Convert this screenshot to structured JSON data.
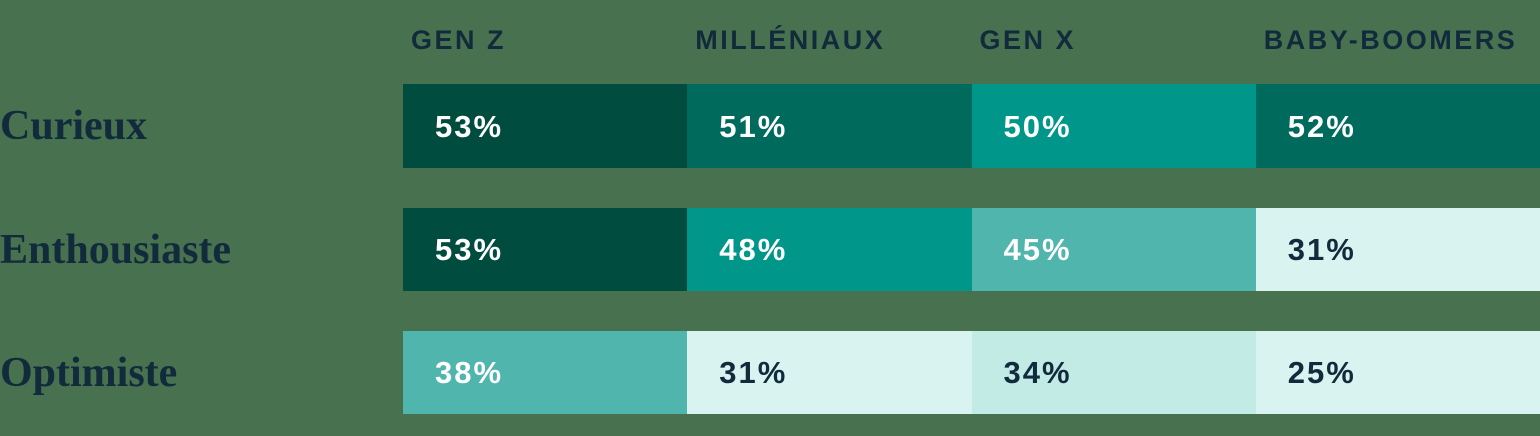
{
  "meta": {
    "background": "#48714F",
    "label_color": "#112B3C",
    "cell_text_light": "#FFFFFF",
    "cell_text_dark": "#112B3C"
  },
  "header": {
    "columns": [
      "GEN Z",
      "MILLÉNIAUX",
      "GEN X",
      "BABY-BOOMERS"
    ]
  },
  "table": {
    "rows": [
      {
        "label": "Curieux",
        "cells": [
          {
            "display": "53%",
            "bg": "#004D40",
            "fg": "#FFFFFF"
          },
          {
            "display": "51%",
            "bg": "#006B5D",
            "fg": "#FFFFFF"
          },
          {
            "display": "50%",
            "bg": "#00978A",
            "fg": "#FFFFFF"
          },
          {
            "display": "52%",
            "bg": "#006B5D",
            "fg": "#FFFFFF"
          }
        ]
      },
      {
        "label": "Enthousiaste",
        "cells": [
          {
            "display": "53%",
            "bg": "#004D40",
            "fg": "#FFFFFF"
          },
          {
            "display": "48%",
            "bg": "#00978A",
            "fg": "#FFFFFF"
          },
          {
            "display": "45%",
            "bg": "#4FB5AD",
            "fg": "#FFFFFF"
          },
          {
            "display": "31%",
            "bg": "#D9F3F1",
            "fg": "#112B3C"
          }
        ]
      },
      {
        "label": "Optimiste",
        "cells": [
          {
            "display": "38%",
            "bg": "#4FB5AD",
            "fg": "#FFFFFF"
          },
          {
            "display": "31%",
            "bg": "#D9F3F1",
            "fg": "#112B3C"
          },
          {
            "display": "34%",
            "bg": "#C3EBE5",
            "fg": "#112B3C"
          },
          {
            "display": "25%",
            "bg": "#D9F3F1",
            "fg": "#112B3C"
          }
        ]
      }
    ]
  },
  "chart_data": {
    "type": "heatmap",
    "categories": [
      "GEN Z",
      "MILLÉNIAUX",
      "GEN X",
      "BABY-BOOMERS"
    ],
    "rows": [
      "Curieux",
      "Enthousiaste",
      "Optimiste"
    ],
    "series": [
      {
        "name": "Curieux",
        "values": [
          53,
          51,
          50,
          52
        ]
      },
      {
        "name": "Enthousiaste",
        "values": [
          53,
          48,
          45,
          31
        ]
      },
      {
        "name": "Optimiste",
        "values": [
          38,
          31,
          34,
          25
        ]
      }
    ],
    "unit": "%",
    "legend": "none",
    "grid": "off",
    "palette_high_to_low": [
      "#004D40",
      "#006B5D",
      "#00978A",
      "#4FB5AD",
      "#C3EBE5",
      "#D9F3F1"
    ]
  }
}
